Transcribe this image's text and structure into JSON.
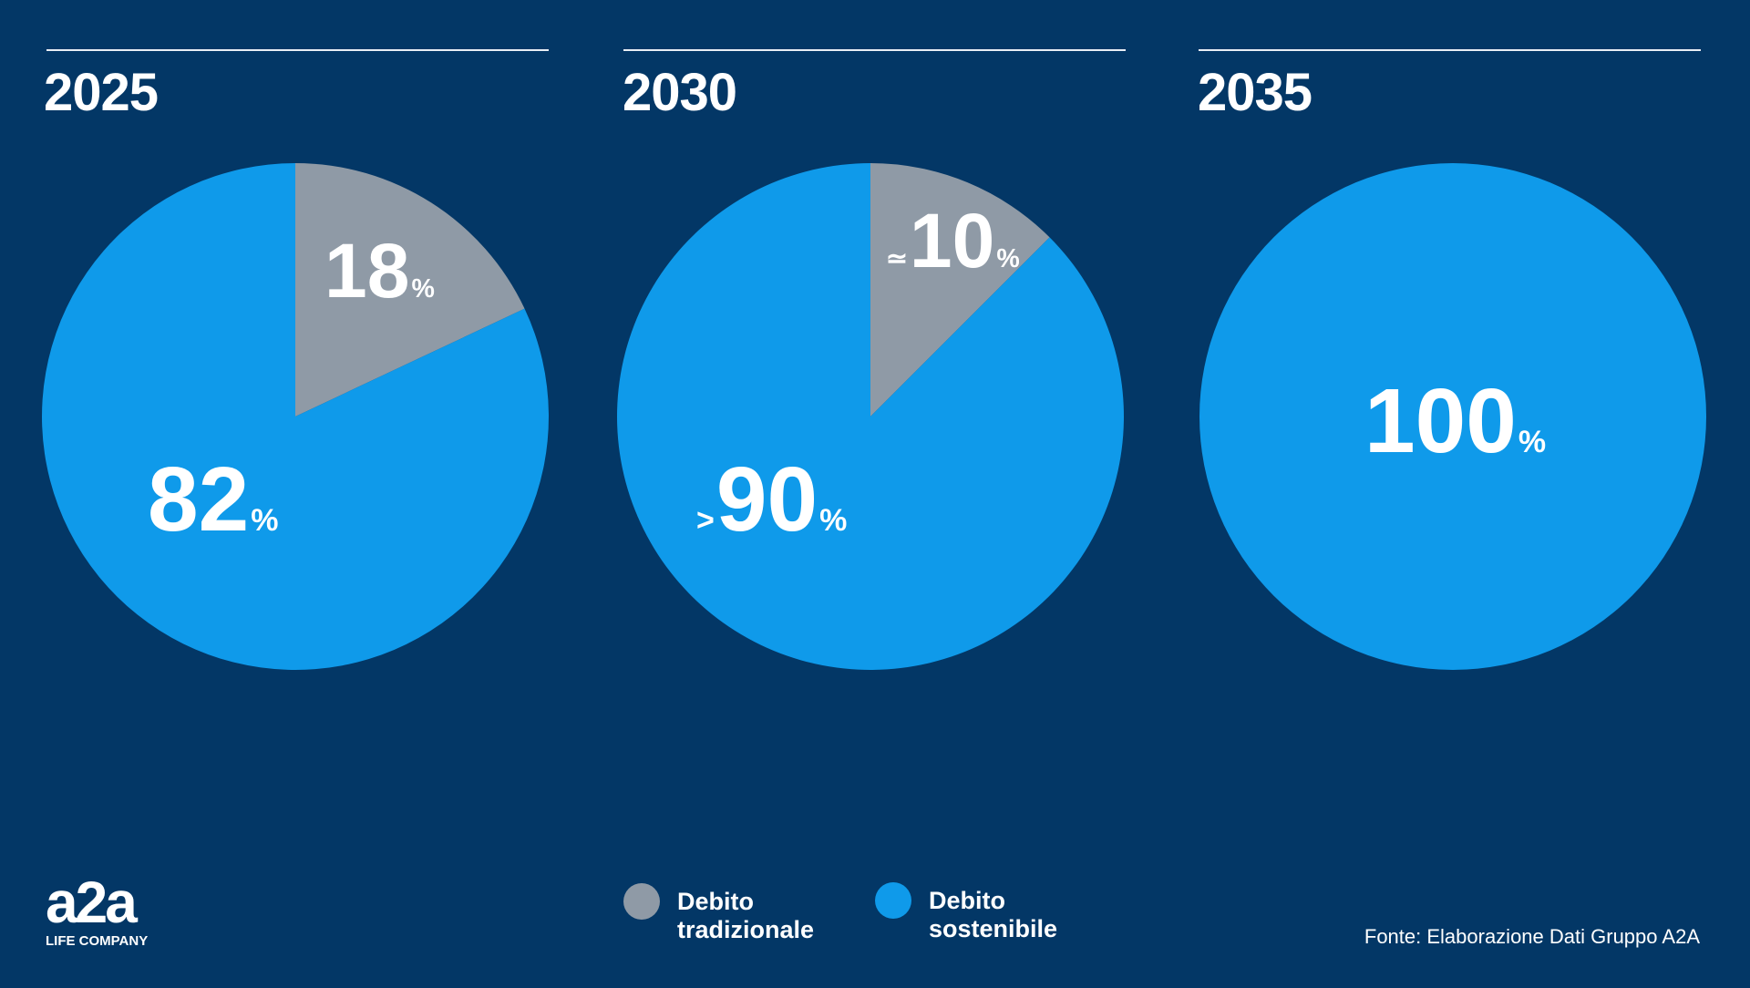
{
  "colors": {
    "background": "#033766",
    "sustainable": "#0f9aea",
    "traditional": "#8f9aa6"
  },
  "chart_data": [
    {
      "type": "pie",
      "title": "2025",
      "slices": [
        {
          "name": "Debito tradizionale",
          "value": 18,
          "label": "18",
          "prefix": ""
        },
        {
          "name": "Debito sostenibile",
          "value": 82,
          "label": "82",
          "prefix": ""
        }
      ]
    },
    {
      "type": "pie",
      "title": "2030",
      "slices": [
        {
          "name": "Debito tradizionale",
          "value": 12.5,
          "label": "10",
          "prefix": "≃"
        },
        {
          "name": "Debito sostenibile",
          "value": 87.5,
          "label": "90",
          "prefix": ">"
        }
      ]
    },
    {
      "type": "pie",
      "title": "2035",
      "slices": [
        {
          "name": "Debito sostenibile",
          "value": 100,
          "label": "100",
          "prefix": ""
        }
      ]
    }
  ],
  "percent_sign": "%",
  "legend": {
    "traditional": {
      "line1": "Debito",
      "line2": "tradizionale"
    },
    "sustainable": {
      "line1": "Debito",
      "line2": "sostenibile"
    }
  },
  "logo": {
    "mark": "a2a",
    "tagline": "LIFE COMPANY"
  },
  "source": "Fonte:  Elaborazione Dati Gruppo A2A"
}
